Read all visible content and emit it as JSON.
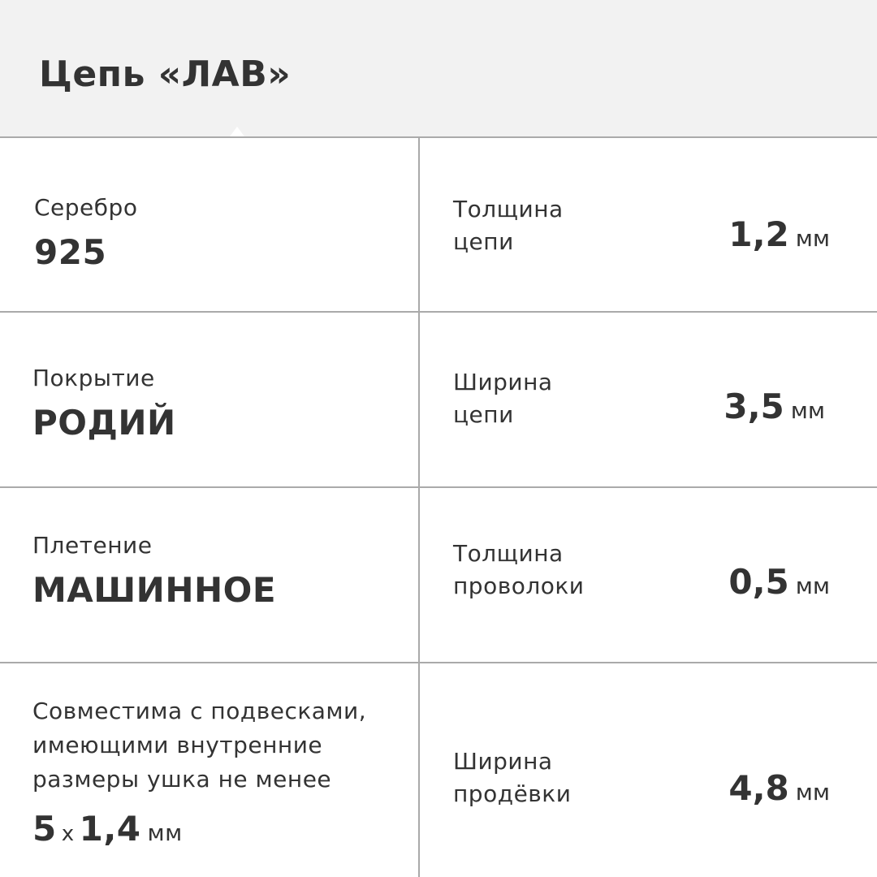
{
  "header": {
    "title": "Цепь «ЛАВ»"
  },
  "left": [
    {
      "label": "Серебро",
      "value": "925"
    },
    {
      "label": "Покрытие",
      "value": "РОДИЙ"
    },
    {
      "label": "Плетение",
      "value": "МАШИННОЕ"
    }
  ],
  "compat": {
    "line1": "Совместима с подвесками,",
    "line2": "имеющими внутренние",
    "line3": "размеры ушка не менее",
    "a": "5",
    "x": "x",
    "b": "1,4",
    "unit": "мм"
  },
  "right": [
    {
      "line1": "Толщина",
      "line2": "цепи",
      "value": "1,2",
      "unit": "мм"
    },
    {
      "line1": "Ширина",
      "line2": "цепи",
      "value": "3,5",
      "unit": "мм"
    },
    {
      "line1": "Толщина",
      "line2": "проволоки",
      "value": "0,5",
      "unit": "мм"
    },
    {
      "line1": "Ширина",
      "line2": "продёвки",
      "value": "4,8",
      "unit": "мм"
    }
  ]
}
